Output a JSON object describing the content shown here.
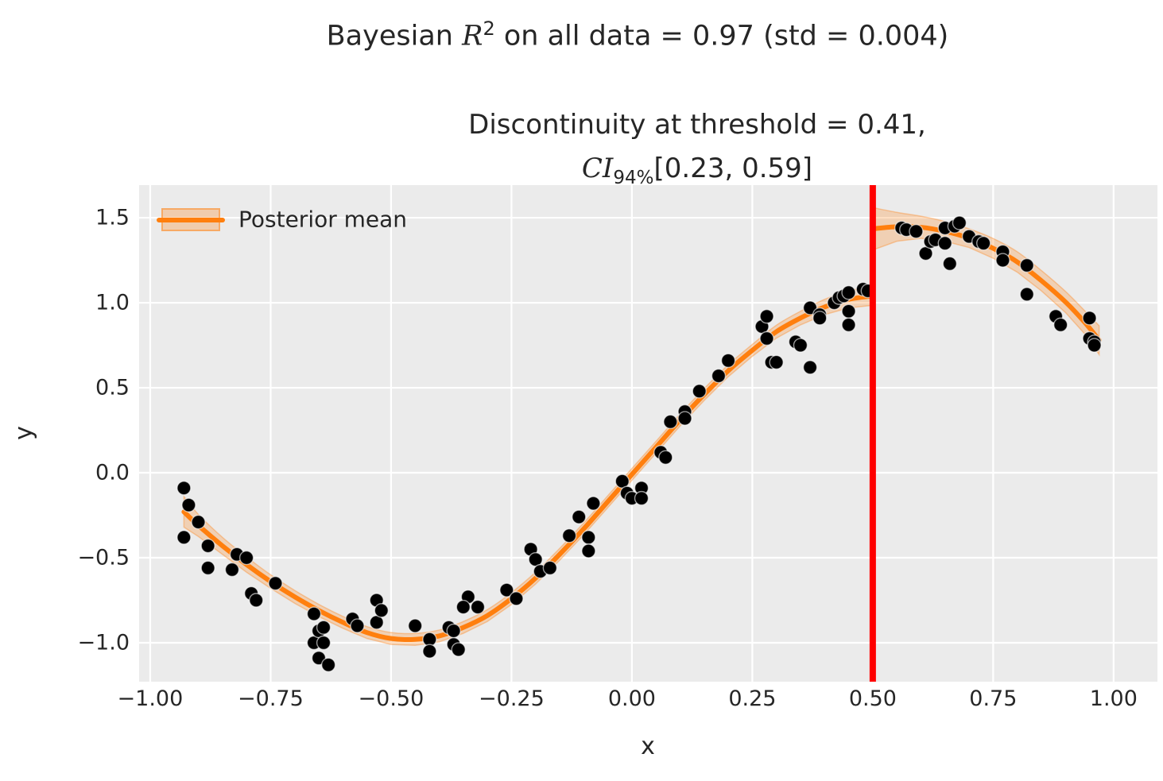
{
  "figure": {
    "title_prefix": "Bayesian ",
    "title_math_symbol": "R",
    "title_math_exponent": "2",
    "title_suffix": " on all data = 0.97 (std = 0.004)",
    "subtitle_line1": "Discontinuity at threshold = 0.41,",
    "subtitle_ci_symbol": "CI",
    "subtitle_ci_subscript": "94%",
    "subtitle_ci_interval": "[0.23, 0.59]"
  },
  "legend": {
    "label": "Posterior mean",
    "position": "upper left"
  },
  "axes": {
    "xlabel": "x",
    "ylabel": "y",
    "xtick_labels": [
      "−1.00",
      "−0.75",
      "−0.50",
      "−0.25",
      "0.00",
      "0.25",
      "0.50",
      "0.75",
      "1.00"
    ],
    "ytick_labels": [
      "1.5",
      "1.0",
      "0.5",
      "0.0",
      "−0.5",
      "−1.0"
    ]
  },
  "colors": {
    "plot_background": "#ebebeb",
    "grid": "#ffffff",
    "posterior_mean": "#ff7f0e",
    "credible_band": "rgba(255,127,14,0.25)",
    "threshold_line": "#ff0000",
    "scatter": "#000000",
    "text": "#262626"
  },
  "chart_data": {
    "type": "scatter",
    "title": "Bayesian R^2 on all data = 0.97 (std = 0.004)",
    "subtitle": "Discontinuity at threshold = 0.41, CI_94% [0.23, 0.59]",
    "xlabel": "x",
    "ylabel": "y",
    "grid": true,
    "legend_position": "upper left",
    "xlim": [
      -1.023,
      1.091
    ],
    "ylim": [
      -1.229,
      1.692
    ],
    "xticks": [
      -1.0,
      -0.75,
      -0.5,
      -0.25,
      0.0,
      0.25,
      0.5,
      0.75,
      1.0
    ],
    "yticks": [
      1.5,
      1.0,
      0.5,
      0.0,
      -0.5,
      -1.0
    ],
    "r_squared": {
      "mean": 0.97,
      "std": 0.004
    },
    "discontinuity": {
      "threshold_estimate": 0.41,
      "ci_level": "94%",
      "ci_low": 0.23,
      "ci_high": 0.59
    },
    "threshold_line_x": 0.5,
    "scatter": {
      "marker_radius_px": 8.5,
      "points": [
        [
          -0.93,
          -0.09
        ],
        [
          -0.92,
          -0.19
        ],
        [
          -0.93,
          -0.38
        ],
        [
          -0.9,
          -0.29
        ],
        [
          -0.88,
          -0.43
        ],
        [
          -0.88,
          -0.56
        ],
        [
          -0.83,
          -0.57
        ],
        [
          -0.82,
          -0.48
        ],
        [
          -0.8,
          -0.5
        ],
        [
          -0.79,
          -0.71
        ],
        [
          -0.78,
          -0.75
        ],
        [
          -0.74,
          -0.65
        ],
        [
          -0.66,
          -0.83
        ],
        [
          -0.66,
          -1.0
        ],
        [
          -0.65,
          -0.93
        ],
        [
          -0.64,
          -0.91
        ],
        [
          -0.64,
          -1.0
        ],
        [
          -0.65,
          -1.09
        ],
        [
          -0.63,
          -1.13
        ],
        [
          -0.58,
          -0.86
        ],
        [
          -0.57,
          -0.9
        ],
        [
          -0.53,
          -0.75
        ],
        [
          -0.53,
          -0.88
        ],
        [
          -0.52,
          -0.81
        ],
        [
          -0.45,
          -0.9
        ],
        [
          -0.42,
          -0.98
        ],
        [
          -0.42,
          -1.05
        ],
        [
          -0.38,
          -0.91
        ],
        [
          -0.37,
          -0.93
        ],
        [
          -0.37,
          -1.01
        ],
        [
          -0.36,
          -1.04
        ],
        [
          -0.34,
          -0.73
        ],
        [
          -0.35,
          -0.79
        ],
        [
          -0.32,
          -0.79
        ],
        [
          -0.26,
          -0.69
        ],
        [
          -0.24,
          -0.74
        ],
        [
          -0.21,
          -0.45
        ],
        [
          -0.2,
          -0.51
        ],
        [
          -0.19,
          -0.58
        ],
        [
          -0.17,
          -0.56
        ],
        [
          -0.13,
          -0.37
        ],
        [
          -0.11,
          -0.26
        ],
        [
          -0.09,
          -0.38
        ],
        [
          -0.09,
          -0.46
        ],
        [
          -0.08,
          -0.18
        ],
        [
          -0.02,
          -0.05
        ],
        [
          -0.01,
          -0.12
        ],
        [
          0.0,
          -0.15
        ],
        [
          0.02,
          -0.09
        ],
        [
          0.02,
          -0.15
        ],
        [
          0.06,
          0.12
        ],
        [
          0.07,
          0.09
        ],
        [
          0.08,
          0.3
        ],
        [
          0.11,
          0.36
        ],
        [
          0.11,
          0.32
        ],
        [
          0.14,
          0.48
        ],
        [
          0.18,
          0.57
        ],
        [
          0.2,
          0.66
        ],
        [
          0.27,
          0.86
        ],
        [
          0.28,
          0.92
        ],
        [
          0.28,
          0.79
        ],
        [
          0.29,
          0.65
        ],
        [
          0.3,
          0.65
        ],
        [
          0.34,
          0.77
        ],
        [
          0.35,
          0.75
        ],
        [
          0.37,
          0.97
        ],
        [
          0.37,
          0.62
        ],
        [
          0.39,
          0.93
        ],
        [
          0.39,
          0.91
        ],
        [
          0.42,
          1.0
        ],
        [
          0.43,
          1.03
        ],
        [
          0.44,
          1.04
        ],
        [
          0.45,
          1.06
        ],
        [
          0.45,
          0.95
        ],
        [
          0.45,
          0.87
        ],
        [
          0.48,
          1.08
        ],
        [
          0.49,
          1.07
        ],
        [
          0.56,
          1.44
        ],
        [
          0.57,
          1.43
        ],
        [
          0.59,
          1.42
        ],
        [
          0.61,
          1.29
        ],
        [
          0.62,
          1.36
        ],
        [
          0.63,
          1.37
        ],
        [
          0.65,
          1.44
        ],
        [
          0.65,
          1.35
        ],
        [
          0.66,
          1.23
        ],
        [
          0.67,
          1.45
        ],
        [
          0.68,
          1.47
        ],
        [
          0.7,
          1.39
        ],
        [
          0.72,
          1.36
        ],
        [
          0.73,
          1.35
        ],
        [
          0.77,
          1.3
        ],
        [
          0.77,
          1.25
        ],
        [
          0.82,
          1.22
        ],
        [
          0.82,
          1.05
        ],
        [
          0.88,
          0.92
        ],
        [
          0.89,
          0.87
        ],
        [
          0.95,
          0.91
        ],
        [
          0.95,
          0.79
        ],
        [
          0.96,
          0.77
        ],
        [
          0.96,
          0.75
        ]
      ]
    },
    "posterior_mean_left": {
      "x": [
        -0.93,
        -0.9,
        -0.85,
        -0.8,
        -0.75,
        -0.7,
        -0.65,
        -0.6,
        -0.55,
        -0.5,
        -0.45,
        -0.4,
        -0.35,
        -0.3,
        -0.25,
        -0.2,
        -0.15,
        -0.1,
        -0.05,
        0.0,
        0.05,
        0.1,
        0.15,
        0.2,
        0.25,
        0.3,
        0.35,
        0.4,
        0.45,
        0.5
      ],
      "mean": [
        -0.23,
        -0.31,
        -0.43,
        -0.54,
        -0.64,
        -0.73,
        -0.81,
        -0.88,
        -0.94,
        -0.975,
        -0.98,
        -0.96,
        -0.91,
        -0.84,
        -0.74,
        -0.62,
        -0.48,
        -0.33,
        -0.17,
        -0.01,
        0.15,
        0.31,
        0.46,
        0.6,
        0.72,
        0.83,
        0.91,
        0.975,
        1.02,
        1.04
      ],
      "ci_halfwidth": [
        0.09,
        0.065,
        0.05,
        0.045,
        0.04,
        0.038,
        0.036,
        0.035,
        0.035,
        0.035,
        0.035,
        0.035,
        0.035,
        0.035,
        0.035,
        0.035,
        0.035,
        0.035,
        0.035,
        0.035,
        0.035,
        0.035,
        0.035,
        0.035,
        0.035,
        0.038,
        0.04,
        0.045,
        0.05,
        0.055
      ]
    },
    "posterior_mean_right": {
      "x": [
        0.5,
        0.55,
        0.6,
        0.65,
        0.7,
        0.75,
        0.8,
        0.85,
        0.9,
        0.94,
        0.97
      ],
      "mean": [
        1.435,
        1.447,
        1.444,
        1.42,
        1.38,
        1.32,
        1.24,
        1.13,
        1.005,
        0.885,
        0.78
      ],
      "ci_halfwidth": [
        0.125,
        0.085,
        0.065,
        0.058,
        0.055,
        0.058,
        0.06,
        0.06,
        0.062,
        0.068,
        0.085
      ]
    }
  }
}
